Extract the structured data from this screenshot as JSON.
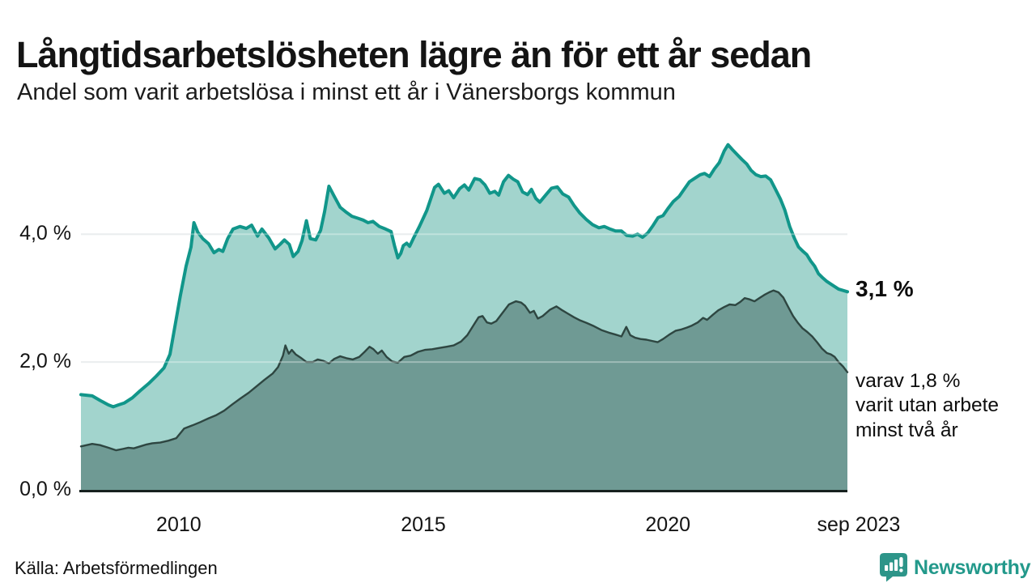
{
  "header": {
    "title": "Långtidsarbetslösheten lägre än för ett år sedan",
    "subtitle": "Andel som varit arbetslösa i minst ett år i Vänersborgs kommun"
  },
  "chart_data": {
    "type": "area",
    "unit": "%",
    "title": "Långtidsarbetslösheten lägre än för ett år sedan",
    "subtitle": "Andel som varit arbetslösa i minst ett år i Vänersborgs kommun",
    "x_domain": [
      2008.0,
      2023.67
    ],
    "ylim": [
      0,
      5.6
    ],
    "grid": "horizontal",
    "y_ticks": [
      {
        "label": "0,0 %",
        "value": 0
      },
      {
        "label": "2,0 %",
        "value": 2
      },
      {
        "label": "4,0 %",
        "value": 4
      }
    ],
    "x_ticks": [
      {
        "label": "2010",
        "value": 2010
      },
      {
        "label": "2015",
        "value": 2015
      },
      {
        "label": "2020",
        "value": 2020
      },
      {
        "label": "sep 2023",
        "value": 2023.9
      }
    ],
    "series": [
      {
        "name": "Arbetslösa minst ett år",
        "line_color": "#11968a",
        "fill_color": "#a2d4cd",
        "line_width": 4,
        "latest_value": 3.1,
        "points": [
          [
            2008.0,
            1.49
          ],
          [
            2008.23,
            1.47
          ],
          [
            2008.39,
            1.4
          ],
          [
            2008.56,
            1.33
          ],
          [
            2008.66,
            1.3
          ],
          [
            2008.77,
            1.33
          ],
          [
            2008.89,
            1.36
          ],
          [
            2009.05,
            1.44
          ],
          [
            2009.21,
            1.55
          ],
          [
            2009.38,
            1.66
          ],
          [
            2009.54,
            1.78
          ],
          [
            2009.7,
            1.91
          ],
          [
            2009.82,
            2.12
          ],
          [
            2009.92,
            2.55
          ],
          [
            2010.03,
            3.03
          ],
          [
            2010.15,
            3.5
          ],
          [
            2010.25,
            3.8
          ],
          [
            2010.31,
            4.18
          ],
          [
            2010.39,
            4.03
          ],
          [
            2010.49,
            3.93
          ],
          [
            2010.61,
            3.85
          ],
          [
            2010.72,
            3.71
          ],
          [
            2010.82,
            3.76
          ],
          [
            2010.9,
            3.73
          ],
          [
            2011.0,
            3.93
          ],
          [
            2011.11,
            4.08
          ],
          [
            2011.25,
            4.12
          ],
          [
            2011.38,
            4.09
          ],
          [
            2011.49,
            4.14
          ],
          [
            2011.61,
            3.97
          ],
          [
            2011.7,
            4.08
          ],
          [
            2011.84,
            3.94
          ],
          [
            2011.97,
            3.77
          ],
          [
            2012.07,
            3.84
          ],
          [
            2012.16,
            3.91
          ],
          [
            2012.26,
            3.84
          ],
          [
            2012.34,
            3.65
          ],
          [
            2012.44,
            3.73
          ],
          [
            2012.52,
            3.9
          ],
          [
            2012.61,
            4.21
          ],
          [
            2012.69,
            3.93
          ],
          [
            2012.8,
            3.91
          ],
          [
            2012.9,
            4.06
          ],
          [
            2012.98,
            4.35
          ],
          [
            2013.07,
            4.75
          ],
          [
            2013.18,
            4.59
          ],
          [
            2013.3,
            4.42
          ],
          [
            2013.43,
            4.34
          ],
          [
            2013.54,
            4.28
          ],
          [
            2013.66,
            4.25
          ],
          [
            2013.77,
            4.22
          ],
          [
            2013.87,
            4.18
          ],
          [
            2013.97,
            4.2
          ],
          [
            2014.1,
            4.12
          ],
          [
            2014.23,
            4.08
          ],
          [
            2014.34,
            4.04
          ],
          [
            2014.41,
            3.82
          ],
          [
            2014.48,
            3.63
          ],
          [
            2014.54,
            3.7
          ],
          [
            2014.59,
            3.82
          ],
          [
            2014.66,
            3.86
          ],
          [
            2014.72,
            3.81
          ],
          [
            2014.8,
            3.94
          ],
          [
            2014.92,
            4.12
          ],
          [
            2015.07,
            4.37
          ],
          [
            2015.23,
            4.73
          ],
          [
            2015.31,
            4.78
          ],
          [
            2015.43,
            4.64
          ],
          [
            2015.52,
            4.68
          ],
          [
            2015.62,
            4.57
          ],
          [
            2015.74,
            4.71
          ],
          [
            2015.84,
            4.77
          ],
          [
            2015.93,
            4.69
          ],
          [
            2016.05,
            4.87
          ],
          [
            2016.16,
            4.85
          ],
          [
            2016.26,
            4.77
          ],
          [
            2016.36,
            4.64
          ],
          [
            2016.46,
            4.67
          ],
          [
            2016.54,
            4.61
          ],
          [
            2016.64,
            4.82
          ],
          [
            2016.74,
            4.92
          ],
          [
            2016.84,
            4.86
          ],
          [
            2016.93,
            4.82
          ],
          [
            2017.03,
            4.66
          ],
          [
            2017.13,
            4.62
          ],
          [
            2017.21,
            4.7
          ],
          [
            2017.3,
            4.56
          ],
          [
            2017.38,
            4.5
          ],
          [
            2017.51,
            4.62
          ],
          [
            2017.62,
            4.72
          ],
          [
            2017.74,
            4.74
          ],
          [
            2017.85,
            4.63
          ],
          [
            2017.97,
            4.58
          ],
          [
            2018.08,
            4.45
          ],
          [
            2018.2,
            4.33
          ],
          [
            2018.33,
            4.23
          ],
          [
            2018.46,
            4.15
          ],
          [
            2018.59,
            4.1
          ],
          [
            2018.7,
            4.12
          ],
          [
            2018.82,
            4.08
          ],
          [
            2018.93,
            4.05
          ],
          [
            2019.05,
            4.05
          ],
          [
            2019.16,
            3.98
          ],
          [
            2019.28,
            3.97
          ],
          [
            2019.38,
            4.0
          ],
          [
            2019.48,
            3.95
          ],
          [
            2019.59,
            4.02
          ],
          [
            2019.7,
            4.14
          ],
          [
            2019.8,
            4.26
          ],
          [
            2019.9,
            4.29
          ],
          [
            2020.0,
            4.4
          ],
          [
            2020.11,
            4.51
          ],
          [
            2020.23,
            4.59
          ],
          [
            2020.33,
            4.7
          ],
          [
            2020.44,
            4.82
          ],
          [
            2020.56,
            4.88
          ],
          [
            2020.66,
            4.93
          ],
          [
            2020.75,
            4.95
          ],
          [
            2020.85,
            4.9
          ],
          [
            2020.95,
            5.02
          ],
          [
            2021.05,
            5.12
          ],
          [
            2021.15,
            5.3
          ],
          [
            2021.23,
            5.4
          ],
          [
            2021.31,
            5.33
          ],
          [
            2021.41,
            5.25
          ],
          [
            2021.51,
            5.17
          ],
          [
            2021.61,
            5.1
          ],
          [
            2021.7,
            5.0
          ],
          [
            2021.8,
            4.93
          ],
          [
            2021.9,
            4.9
          ],
          [
            2022.0,
            4.91
          ],
          [
            2022.1,
            4.85
          ],
          [
            2022.2,
            4.7
          ],
          [
            2022.3,
            4.55
          ],
          [
            2022.39,
            4.38
          ],
          [
            2022.49,
            4.12
          ],
          [
            2022.59,
            3.93
          ],
          [
            2022.67,
            3.8
          ],
          [
            2022.75,
            3.74
          ],
          [
            2022.84,
            3.68
          ],
          [
            2022.92,
            3.58
          ],
          [
            2023.0,
            3.5
          ],
          [
            2023.08,
            3.38
          ],
          [
            2023.16,
            3.32
          ],
          [
            2023.25,
            3.26
          ],
          [
            2023.33,
            3.22
          ],
          [
            2023.41,
            3.18
          ],
          [
            2023.49,
            3.14
          ],
          [
            2023.58,
            3.12
          ],
          [
            2023.67,
            3.1
          ]
        ]
      },
      {
        "name": "Varav utan arbete minst två år",
        "line_color": "#2e4641",
        "fill_color": "#6f9a94",
        "line_width": 2.4,
        "latest_value": 1.8,
        "points": [
          [
            2008.0,
            0.68
          ],
          [
            2008.23,
            0.72
          ],
          [
            2008.39,
            0.7
          ],
          [
            2008.56,
            0.66
          ],
          [
            2008.72,
            0.62
          ],
          [
            2008.85,
            0.64
          ],
          [
            2008.97,
            0.66
          ],
          [
            2009.08,
            0.65
          ],
          [
            2009.21,
            0.68
          ],
          [
            2009.34,
            0.71
          ],
          [
            2009.46,
            0.73
          ],
          [
            2009.62,
            0.74
          ],
          [
            2009.79,
            0.77
          ],
          [
            2009.95,
            0.81
          ],
          [
            2010.11,
            0.96
          ],
          [
            2010.28,
            1.01
          ],
          [
            2010.44,
            1.06
          ],
          [
            2010.61,
            1.12
          ],
          [
            2010.77,
            1.17
          ],
          [
            2010.93,
            1.24
          ],
          [
            2011.1,
            1.34
          ],
          [
            2011.26,
            1.43
          ],
          [
            2011.43,
            1.52
          ],
          [
            2011.59,
            1.62
          ],
          [
            2011.75,
            1.72
          ],
          [
            2011.92,
            1.82
          ],
          [
            2012.03,
            1.92
          ],
          [
            2012.13,
            2.1
          ],
          [
            2012.18,
            2.26
          ],
          [
            2012.25,
            2.13
          ],
          [
            2012.31,
            2.19
          ],
          [
            2012.39,
            2.12
          ],
          [
            2012.49,
            2.07
          ],
          [
            2012.61,
            2.0
          ],
          [
            2012.74,
            2.0
          ],
          [
            2012.84,
            2.04
          ],
          [
            2012.95,
            2.02
          ],
          [
            2013.07,
            1.98
          ],
          [
            2013.18,
            2.05
          ],
          [
            2013.3,
            2.09
          ],
          [
            2013.43,
            2.06
          ],
          [
            2013.56,
            2.04
          ],
          [
            2013.69,
            2.08
          ],
          [
            2013.8,
            2.16
          ],
          [
            2013.9,
            2.24
          ],
          [
            2013.98,
            2.2
          ],
          [
            2014.07,
            2.13
          ],
          [
            2014.15,
            2.18
          ],
          [
            2014.25,
            2.08
          ],
          [
            2014.36,
            2.01
          ],
          [
            2014.48,
            1.99
          ],
          [
            2014.61,
            2.08
          ],
          [
            2014.74,
            2.1
          ],
          [
            2014.89,
            2.16
          ],
          [
            2015.03,
            2.19
          ],
          [
            2015.18,
            2.2
          ],
          [
            2015.33,
            2.22
          ],
          [
            2015.48,
            2.24
          ],
          [
            2015.62,
            2.26
          ],
          [
            2015.77,
            2.32
          ],
          [
            2015.9,
            2.42
          ],
          [
            2016.03,
            2.58
          ],
          [
            2016.13,
            2.7
          ],
          [
            2016.21,
            2.72
          ],
          [
            2016.3,
            2.62
          ],
          [
            2016.39,
            2.6
          ],
          [
            2016.49,
            2.64
          ],
          [
            2016.61,
            2.76
          ],
          [
            2016.75,
            2.9
          ],
          [
            2016.89,
            2.95
          ],
          [
            2017.0,
            2.93
          ],
          [
            2017.08,
            2.88
          ],
          [
            2017.18,
            2.77
          ],
          [
            2017.26,
            2.8
          ],
          [
            2017.34,
            2.68
          ],
          [
            2017.44,
            2.72
          ],
          [
            2017.59,
            2.82
          ],
          [
            2017.72,
            2.87
          ],
          [
            2017.84,
            2.81
          ],
          [
            2017.95,
            2.76
          ],
          [
            2018.08,
            2.7
          ],
          [
            2018.21,
            2.65
          ],
          [
            2018.34,
            2.61
          ],
          [
            2018.49,
            2.56
          ],
          [
            2018.64,
            2.5
          ],
          [
            2018.79,
            2.46
          ],
          [
            2018.93,
            2.43
          ],
          [
            2019.05,
            2.4
          ],
          [
            2019.15,
            2.55
          ],
          [
            2019.23,
            2.42
          ],
          [
            2019.33,
            2.38
          ],
          [
            2019.44,
            2.36
          ],
          [
            2019.56,
            2.35
          ],
          [
            2019.67,
            2.33
          ],
          [
            2019.79,
            2.31
          ],
          [
            2019.9,
            2.36
          ],
          [
            2020.03,
            2.43
          ],
          [
            2020.16,
            2.49
          ],
          [
            2020.28,
            2.51
          ],
          [
            2020.39,
            2.54
          ],
          [
            2020.49,
            2.57
          ],
          [
            2020.61,
            2.62
          ],
          [
            2020.72,
            2.69
          ],
          [
            2020.8,
            2.66
          ],
          [
            2020.92,
            2.74
          ],
          [
            2021.03,
            2.81
          ],
          [
            2021.15,
            2.86
          ],
          [
            2021.26,
            2.9
          ],
          [
            2021.38,
            2.89
          ],
          [
            2021.48,
            2.94
          ],
          [
            2021.57,
            3.0
          ],
          [
            2021.67,
            2.98
          ],
          [
            2021.77,
            2.95
          ],
          [
            2021.87,
            3.0
          ],
          [
            2021.97,
            3.05
          ],
          [
            2022.07,
            3.09
          ],
          [
            2022.16,
            3.12
          ],
          [
            2022.26,
            3.09
          ],
          [
            2022.36,
            3.01
          ],
          [
            2022.46,
            2.86
          ],
          [
            2022.56,
            2.72
          ],
          [
            2022.66,
            2.61
          ],
          [
            2022.75,
            2.53
          ],
          [
            2022.85,
            2.47
          ],
          [
            2022.95,
            2.4
          ],
          [
            2023.05,
            2.31
          ],
          [
            2023.15,
            2.21
          ],
          [
            2023.25,
            2.14
          ],
          [
            2023.33,
            2.12
          ],
          [
            2023.41,
            2.08
          ],
          [
            2023.49,
            2.0
          ],
          [
            2023.58,
            1.93
          ],
          [
            2023.67,
            1.84
          ]
        ]
      }
    ],
    "annotations": {
      "end_value": 3.1,
      "end_value_label": "3,1 %",
      "secondary_anchor": 1.93,
      "secondary_lines": [
        "varav 1,8 %",
        "varit utan arbete",
        "minst två år"
      ]
    }
  },
  "footer": {
    "source": "Källa: Arbetsförmedlingen",
    "brand": "Newsworthy",
    "brand_color": "#23998b",
    "brand_icon": "speech-bubble-bar-chart-icon"
  }
}
